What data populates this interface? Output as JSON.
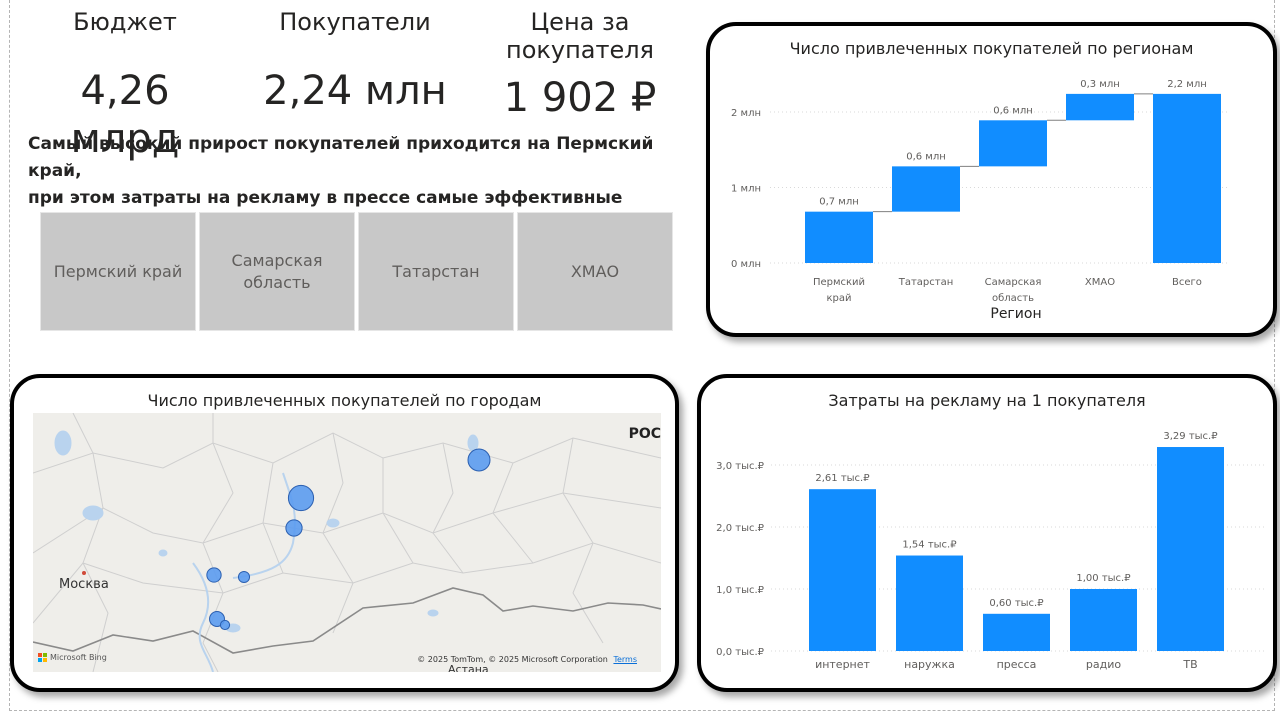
{
  "kpis": {
    "budget": {
      "title": "Бюджет",
      "value": "4,26 млрд"
    },
    "buyers": {
      "title": "Покупатели",
      "value": "2,24 млн"
    },
    "price": {
      "title_line1": "Цена за",
      "title_line2": "покупателя",
      "value": "1 902 ₽"
    }
  },
  "insight": {
    "line1": "Самый высокий прирост покупателей приходится на Пермский край,",
    "line2": "при этом затраты на рекламу в прессе самые эффективные"
  },
  "slicers": [
    {
      "label": "Пермский край"
    },
    {
      "label_line1": "Самарская",
      "label_line2": "область"
    },
    {
      "label": "Татарстан"
    },
    {
      "label": "ХМАО"
    }
  ],
  "colors": {
    "accent": "#118DFF",
    "connector": "#808080",
    "grid": "#d9d9d9",
    "map_bubble": "#5b9bef"
  },
  "waterfall": {
    "title": "Число привлеченных покупателей по регионам",
    "xlabel": "Регион",
    "y_ticks": [
      "0 млн",
      "1 млн",
      "2 млн"
    ],
    "category_lines": [
      [
        "Пермский",
        "край"
      ],
      [
        "Татарстан"
      ],
      [
        "Самарская",
        "область"
      ],
      [
        "ХМАО"
      ],
      [
        "Всего"
      ]
    ],
    "data_labels": [
      "0,7 млн",
      "0,6 млн",
      "0,6 млн",
      "0,3 млн",
      "2,2 млн"
    ]
  },
  "map": {
    "title": "Число привлеченных покупателей по городам",
    "city_label": "Москва",
    "country_label": "РОС",
    "city_label_bottom": "Астана",
    "bing_label": "Microsoft Bing",
    "copyright": "© 2025 TomTom, © 2025 Microsoft Corporation",
    "terms": "Terms"
  },
  "ad_cost": {
    "title": "Затраты на рекламу на 1 покупателя",
    "y_ticks": [
      "0,0 тыс.₽",
      "1,0 тыс.₽",
      "2,0 тыс.₽",
      "3,0 тыс.₽"
    ],
    "data_labels": [
      "2,61 тыс.₽",
      "1,54 тыс.₽",
      "0,60 тыс.₽",
      "1,00 тыс.₽",
      "3,29 тыс.₽"
    ]
  },
  "chart_data": [
    {
      "type": "bar",
      "subtype": "waterfall",
      "title": "Число привлеченных покупателей по регионам",
      "xlabel": "Регион",
      "ylabel": "",
      "unit": "млн",
      "categories": [
        "Пермский край",
        "Татарстан",
        "Самарская область",
        "ХМАО",
        "Всего"
      ],
      "values": [
        0.7,
        0.6,
        0.6,
        0.3,
        2.2
      ],
      "cumulative_end": [
        0.68,
        1.28,
        1.89,
        2.24,
        2.24
      ],
      "ylim": [
        0,
        2.4
      ],
      "grid": true
    },
    {
      "type": "bar",
      "title": "Затраты на рекламу на 1 покупателя",
      "xlabel": "",
      "ylabel": "",
      "unit": "тыс.₽",
      "categories": [
        "интернет",
        "наружка",
        "пресса",
        "радио",
        "ТВ"
      ],
      "values": [
        2.61,
        1.54,
        0.6,
        1.0,
        3.29
      ],
      "ylim": [
        0,
        3.4
      ],
      "grid": true
    },
    {
      "type": "scatter",
      "subtype": "bubble-map",
      "title": "Число привлеченных покупателей по городам",
      "points": [
        {
          "size": 3
        },
        {
          "size": 2.5
        },
        {
          "size": 1.3
        },
        {
          "size": 1.6
        },
        {
          "size": 0.8
        },
        {
          "size": 1.4
        },
        {
          "size": 0.5
        }
      ]
    }
  ]
}
